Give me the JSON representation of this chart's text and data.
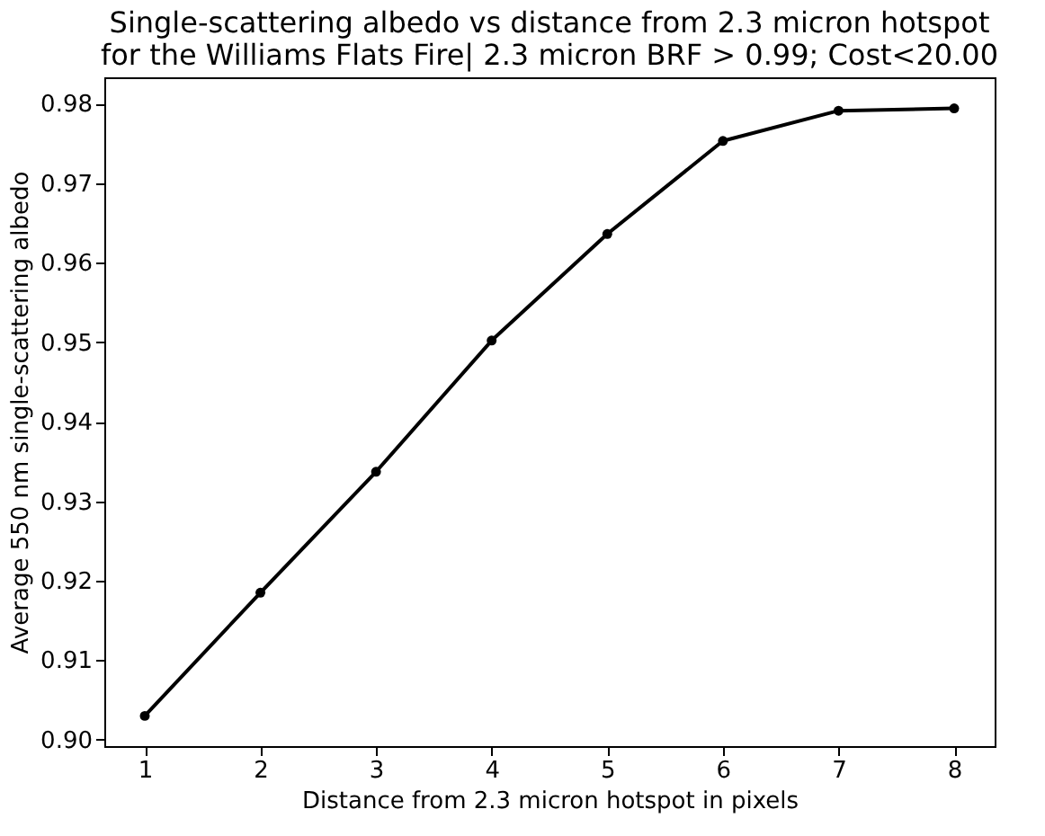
{
  "chart_data": {
    "type": "line",
    "title": [
      "Single-scattering albedo vs distance from 2.3 micron hotspot",
      "for the Williams Flats Fire| 2.3 micron BRF > 0.99; Cost<20.00"
    ],
    "xlabel": "Distance from 2.3 micron hotspot in pixels",
    "ylabel": "Average 550 nm single-scattering albedo",
    "x": [
      1,
      2,
      3,
      4,
      5,
      6,
      7,
      8
    ],
    "series": [
      {
        "color": "#000000",
        "values": [
          0.903,
          0.9185,
          0.9337,
          0.9502,
          0.9636,
          0.9753,
          0.9791,
          0.9794
        ]
      }
    ],
    "xlim": [
      0.65,
      8.35
    ],
    "ylim": [
      0.8992,
      0.9833
    ],
    "xticks": [
      1,
      2,
      3,
      4,
      5,
      6,
      7,
      8
    ],
    "yticks": [
      {
        "value": 0.9,
        "label": "0.90"
      },
      {
        "value": 0.91,
        "label": "0.91"
      },
      {
        "value": 0.92,
        "label": "0.92"
      },
      {
        "value": 0.93,
        "label": "0.93"
      },
      {
        "value": 0.94,
        "label": "0.94"
      },
      {
        "value": 0.95,
        "label": "0.95"
      },
      {
        "value": 0.96,
        "label": "0.96"
      },
      {
        "value": 0.97,
        "label": "0.97"
      },
      {
        "value": 0.98,
        "label": "0.98"
      }
    ],
    "grid": false,
    "marker": "circle",
    "line_style": "solid"
  }
}
